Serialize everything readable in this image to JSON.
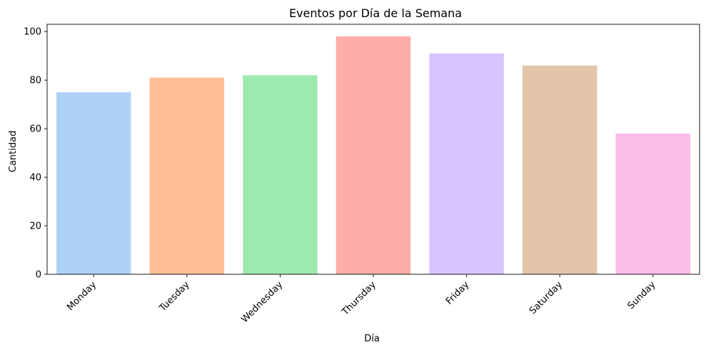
{
  "chart_data": {
    "type": "bar",
    "title": "Eventos por Día de la Semana",
    "xlabel": "Día",
    "ylabel": "Cantidad",
    "categories": [
      "Monday",
      "Tuesday",
      "Wednesday",
      "Thursday",
      "Friday",
      "Saturday",
      "Sunday"
    ],
    "values": [
      75,
      81,
      82,
      98,
      91,
      86,
      58
    ],
    "colors": [
      "#a1c9f4",
      "#ffb482",
      "#8de5a1",
      "#ff9f9b",
      "#d0bbff",
      "#debb9b",
      "#fab0e4"
    ],
    "bar_opacity": 0.85,
    "ylim": [
      0,
      103
    ],
    "yticks": [
      0,
      20,
      40,
      60,
      80,
      100
    ],
    "grid": false,
    "xtick_rotation": 45
  }
}
